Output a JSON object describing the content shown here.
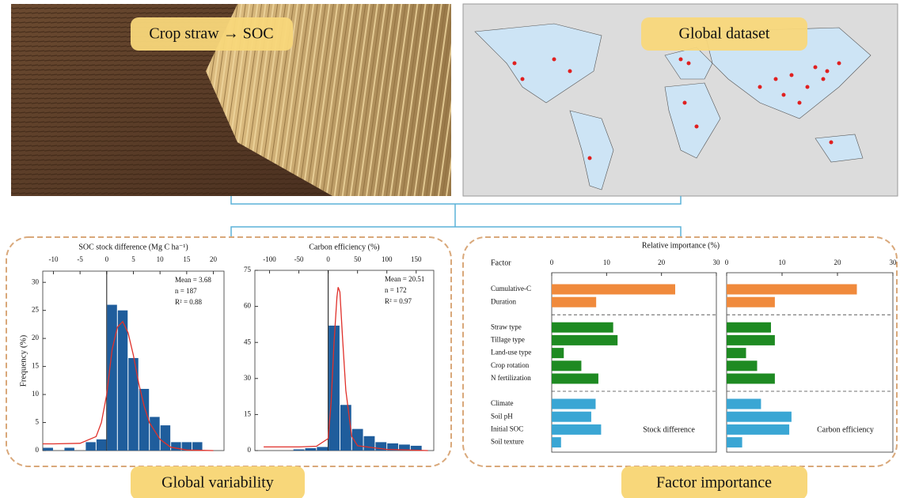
{
  "photo": {
    "label": "Crop straw → SOC"
  },
  "map": {
    "label": "Global dataset"
  },
  "sections": {
    "left": "Global variability",
    "right": "Factor importance"
  },
  "chart_data": [
    {
      "type": "histogram",
      "title": "SOC stock difference (Mg C ha⁻¹)",
      "ylabel": "Frequency (%)",
      "bins": [
        -12,
        -10,
        -8,
        -6,
        -4,
        -2,
        0,
        2,
        4,
        6,
        8,
        10,
        12,
        14,
        16,
        18
      ],
      "values": [
        0.5,
        0,
        0.5,
        0,
        1.5,
        2,
        26,
        25,
        16.5,
        11,
        6,
        4.5,
        1.5,
        1.5,
        1.5
      ],
      "color": "#1f5d9c",
      "xlim": [
        -12,
        22
      ],
      "xticks": [
        -10,
        -5,
        0,
        5,
        10,
        15,
        20
      ],
      "ylim": [
        0,
        32
      ],
      "yticks": [
        0,
        5,
        10,
        15,
        20,
        25,
        30
      ],
      "annotations": [
        "Mean = 3.68",
        "n = 187",
        "R² = 0.88"
      ],
      "fit": {
        "color": "#e0302a",
        "x": [
          -12,
          -10,
          -5,
          -2,
          -1,
          0,
          1,
          2,
          3,
          4,
          5,
          6,
          7,
          8,
          10,
          12,
          15,
          20
        ],
        "values": [
          1.2,
          1.2,
          1.3,
          2.5,
          5,
          10,
          18,
          22,
          23,
          21,
          17,
          12,
          8,
          5,
          2,
          0.6,
          0.1,
          0
        ]
      }
    },
    {
      "type": "histogram",
      "title": "Carbon efficiency (%)",
      "bins": [
        -60,
        -40,
        -20,
        0,
        20,
        40,
        60,
        80,
        100,
        120,
        140,
        160
      ],
      "values": [
        0.5,
        1,
        1.5,
        52,
        19,
        9,
        6,
        3.5,
        3,
        2.5,
        2
      ],
      "color": "#1f5d9c",
      "xlim": [
        -125,
        180
      ],
      "xticks": [
        -100,
        -50,
        0,
        50,
        100,
        150
      ],
      "ylim": [
        0,
        75
      ],
      "yticks": [
        0,
        15,
        30,
        45,
        60,
        75
      ],
      "annotations": [
        "Mean = 20.51",
        "n = 172",
        "R² = 0.97"
      ],
      "fit": {
        "color": "#e0302a",
        "x": [
          -110,
          -50,
          -20,
          0,
          5,
          10,
          15,
          17,
          20,
          25,
          30,
          40,
          50,
          100,
          170
        ],
        "values": [
          1.5,
          1.5,
          1.8,
          5,
          20,
          45,
          64,
          68,
          66,
          45,
          25,
          6,
          2,
          0.5,
          0
        ]
      }
    },
    {
      "type": "bar",
      "orientation": "horizontal",
      "title": "Relative importance (%)",
      "category_label": "Factor",
      "categories": [
        "Cumulative-C",
        "Duration",
        "Straw type",
        "Tillage type",
        "Land-use type",
        "Crop rotation",
        "N fertilization",
        "Climate",
        "Soil pH",
        "Initial SOC",
        "Soil texture"
      ],
      "colors": [
        "#f08a3c",
        "#f08a3c",
        "#1e8a22",
        "#1e8a22",
        "#1e8a22",
        "#1e8a22",
        "#1e8a22",
        "#3aa6d4",
        "#3aa6d4",
        "#3aa6d4",
        "#3aa6d4"
      ],
      "xlim": [
        0,
        30
      ],
      "xticks": [
        0,
        10,
        20,
        30
      ],
      "series": [
        {
          "name": "Stock difference",
          "values": [
            22.5,
            8.1,
            11.2,
            12,
            2.2,
            5.4,
            8.5,
            8,
            7.2,
            9,
            1.7
          ]
        },
        {
          "name": "Carbon efficiency",
          "values": [
            23.5,
            8.7,
            8,
            8.7,
            3.5,
            5.5,
            8.7,
            6.2,
            11.7,
            11.3,
            2.8
          ]
        }
      ]
    }
  ]
}
